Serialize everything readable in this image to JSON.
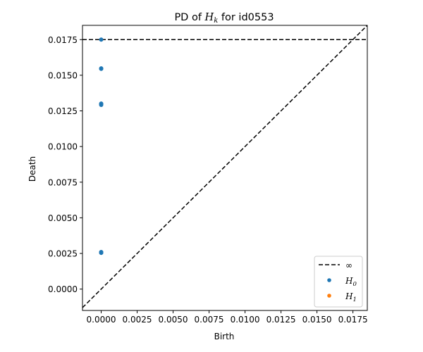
{
  "chart_data": {
    "type": "scatter",
    "title_prefix": "PD of ",
    "title_var": "H",
    "title_sub": "k",
    "title_suffix": " for id0553",
    "xlabel": "Birth",
    "ylabel": "Death",
    "xlim": [
      -0.0013,
      0.0185
    ],
    "ylim": [
      -0.0015,
      0.0185
    ],
    "xticks": [
      0.0,
      0.0025,
      0.005,
      0.0075,
      0.01,
      0.0125,
      0.015,
      0.0175
    ],
    "xtick_labels": [
      "0.0000",
      "0.0025",
      "0.0050",
      "0.0075",
      "0.0100",
      "0.0125",
      "0.0150",
      "0.0175"
    ],
    "yticks": [
      0.0,
      0.0025,
      0.005,
      0.0075,
      0.01,
      0.0125,
      0.015,
      0.0175
    ],
    "ytick_labels": [
      "0.0000",
      "0.0025",
      "0.0050",
      "0.0075",
      "0.0100",
      "0.0125",
      "0.0150",
      "0.0175"
    ],
    "infinity_level": 0.0175,
    "diagonal": true,
    "series": [
      {
        "name": "H_0",
        "color": "#1f77b4",
        "points": [
          [
            0.0,
            0.0175
          ],
          [
            0.0,
            0.01545
          ],
          [
            0.0,
            0.01548
          ],
          [
            0.0,
            0.01292
          ],
          [
            0.0,
            0.01297
          ],
          [
            0.0,
            0.01301
          ],
          [
            0.0,
            0.00254
          ],
          [
            0.0,
            0.00258
          ],
          [
            0.0,
            0.0026
          ]
        ]
      },
      {
        "name": "H_1",
        "color": "#ff7f0e",
        "points": []
      }
    ],
    "legend": {
      "placement": "lower-right",
      "entries": [
        {
          "kind": "line",
          "label": "∞",
          "color": "#000000"
        },
        {
          "kind": "marker",
          "label_var": "H",
          "label_sub": "0",
          "color": "#1f77b4"
        },
        {
          "kind": "marker",
          "label_var": "H",
          "label_sub": "1",
          "color": "#ff7f0e"
        }
      ]
    }
  }
}
